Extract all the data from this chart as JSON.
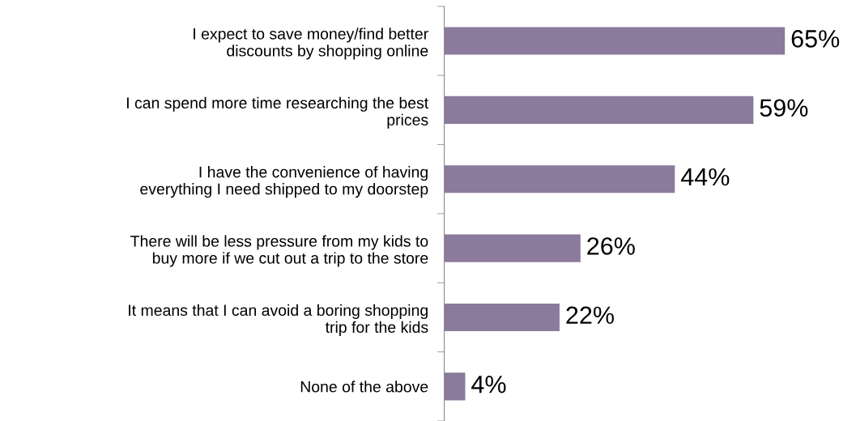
{
  "chart_data": {
    "type": "bar",
    "orientation": "horizontal",
    "categories": [
      "I expect to save money/find better\ndiscounts by shopping online",
      "I can spend more time researching the best\nprices",
      "I have the convenience of having\neverything I need shipped to my doorstep",
      "There will be less pressure from my kids to\nbuy more if we cut out a trip to the store",
      "It means that I can avoid a boring shopping\ntrip for the kids",
      "None of the above"
    ],
    "values": [
      65,
      59,
      44,
      26,
      22,
      4
    ],
    "value_labels": [
      "65%",
      "59%",
      "44%",
      "26%",
      "22%",
      "4%"
    ],
    "color": "#8b7a9b",
    "grid": false,
    "legend": false
  }
}
